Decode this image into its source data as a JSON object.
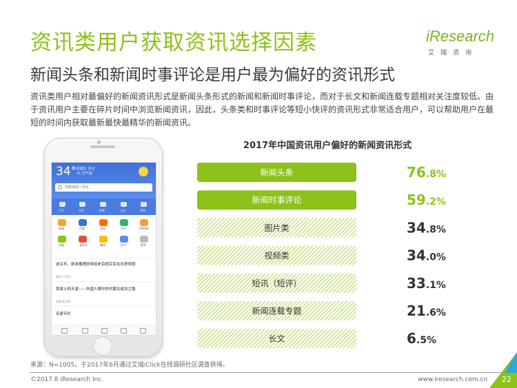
{
  "page": {
    "title": "资讯类用户获取资讯选择因素",
    "subtitle": "新闻头条和新闻时事评论是用户最为偏好的资讯形式",
    "body": "资讯类用户相对最偏好的新闻资讯形式是新闻头条形式的新闻和新闻时事评论，而对于长文和新闻连载专题相对关注度较低。由于资讯用户主要在碎片时间中浏览新闻资讯，因此，头条类和时事评论等短小快评的资讯形式非常适合用户，可以帮助用户在最短的时间内获取最新最快最精华的新闻资讯。",
    "source": "来源：N=1005，于2017年6月通过艾瑞iClick在线调研社区调查获得。",
    "copyright": "©2017.8 iResearch Inc.",
    "website": "www.iresearch.com.cn",
    "page_number": "22"
  },
  "logo": {
    "name": "iResearch",
    "sub": "艾瑞咨询"
  },
  "phone": {
    "temperature": "34°",
    "date_line1": "星期五 多云",
    "date_line2": "41  空气良",
    "search_placeholder": "搜索或输入网址",
    "top_icons": [
      "天气",
      "头条",
      "视频",
      "小说",
      "游戏"
    ],
    "app_labels_row1": [
      "新闻",
      "百度",
      "淘宝",
      "京东",
      "58同城"
    ],
    "app_labels_row2": [
      "优酷",
      "爱奇艺",
      "美团",
      "苏宁",
      "更多"
    ],
    "news": [
      {
        "headline": "这五年，新发展理念带给老百姓实实在在获得感",
        "meta": "要闻  人民网"
      },
      {
        "headline": "草原上的天堂——外国人眼中的内蒙古成功之路",
        "meta": "专题  新华网"
      }
    ],
    "section": "名家专栏"
  },
  "colors": {
    "accent_green": "#8cc219",
    "hatch_green": "#b6d85a",
    "value_gray": "#333333",
    "corner_blue": "#2aa8e0"
  },
  "chart_data": {
    "type": "bar",
    "title": "2017年中国资讯用户偏好的新闻资讯形式",
    "categories": [
      "新闻头条",
      "新闻时事评论",
      "图片类",
      "视频类",
      "短讯（短评）",
      "新闻连载专题",
      "长文"
    ],
    "values": [
      76.8,
      59.2,
      34.8,
      34.0,
      33.1,
      21.6,
      6.5
    ],
    "value_labels": [
      {
        "int": "76",
        "dec": ".8%"
      },
      {
        "int": "59",
        "dec": ".2%"
      },
      {
        "int": "34",
        "dec": ".8%"
      },
      {
        "int": "34",
        "dec": ".0%"
      },
      {
        "int": "33",
        "dec": ".1%"
      },
      {
        "int": "21",
        "dec": ".6%"
      },
      {
        "int": "6",
        "dec": ".5%"
      }
    ],
    "highlight": [
      true,
      true,
      false,
      false,
      false,
      false,
      false
    ],
    "unit": "%"
  }
}
